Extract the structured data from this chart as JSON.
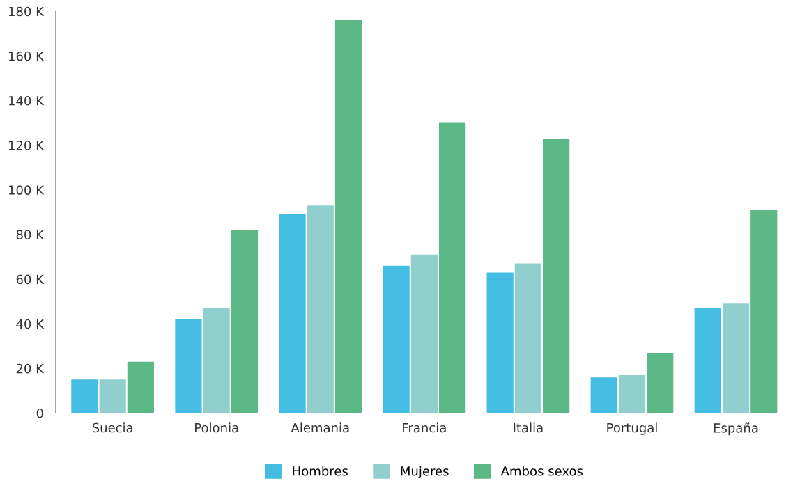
{
  "chart_data": {
    "type": "bar",
    "categories": [
      "Suecia",
      "Polonia",
      "Alemania",
      "Francia",
      "Italia",
      "Portugal",
      "España"
    ],
    "series": [
      {
        "name": "Hombres",
        "color": "#45bde3",
        "values": [
          15,
          42,
          89,
          66,
          63,
          16,
          47
        ]
      },
      {
        "name": "Mujeres",
        "color": "#91cfcf",
        "values": [
          15,
          47,
          93,
          71,
          67,
          17,
          49
        ]
      },
      {
        "name": "Ambos sexos",
        "color": "#5cb985",
        "values": [
          23,
          82,
          176,
          130,
          123,
          27,
          91
        ]
      }
    ],
    "ylim": [
      0,
      180
    ],
    "yticks": [
      {
        "value": 0,
        "label": "0"
      },
      {
        "value": 20,
        "label": "20 K"
      },
      {
        "value": 40,
        "label": "40 K"
      },
      {
        "value": 60,
        "label": "60 K"
      },
      {
        "value": 80,
        "label": "80 K"
      },
      {
        "value": 100,
        "label": "100 K"
      },
      {
        "value": 120,
        "label": "120 K"
      },
      {
        "value": 140,
        "label": "140 K"
      },
      {
        "value": 160,
        "label": "160 K"
      },
      {
        "value": 180,
        "label": "180 K"
      }
    ],
    "grid": false,
    "legend": "bottom"
  }
}
